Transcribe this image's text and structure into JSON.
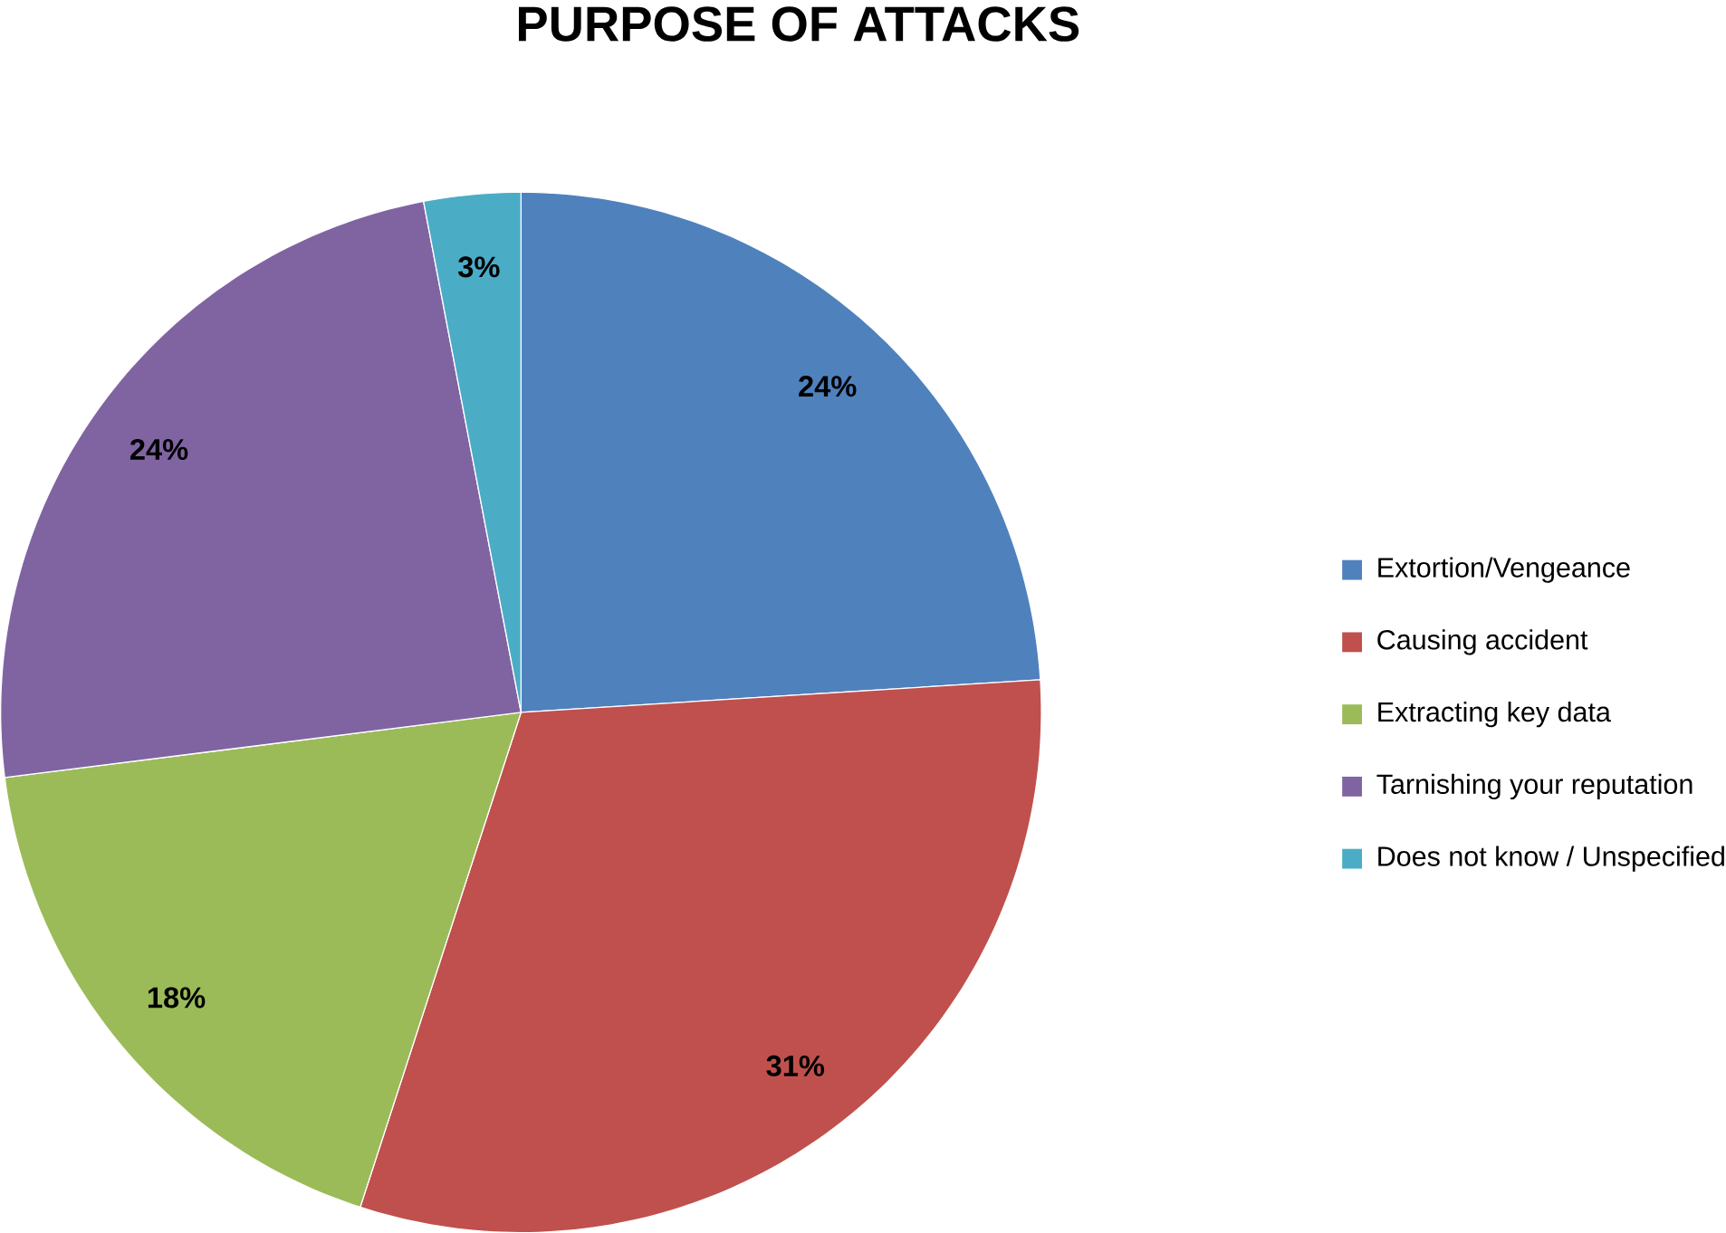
{
  "chart_data": {
    "type": "pie",
    "title": "PURPOSE OF ATTACKS",
    "categories": [
      "Extortion/Vengeance",
      "Causing accident",
      "Extracting key data",
      "Tarnishing your reputation",
      "Does not know / Unspecified"
    ],
    "values": [
      24,
      31,
      18,
      24,
      3
    ],
    "colors": [
      "#4f81bd",
      "#c0504d",
      "#9bbb59",
      "#8064a2",
      "#4bacc6"
    ],
    "value_labels": [
      "24%",
      "31%",
      "18%",
      "24%",
      "3%"
    ],
    "legend": "right"
  }
}
